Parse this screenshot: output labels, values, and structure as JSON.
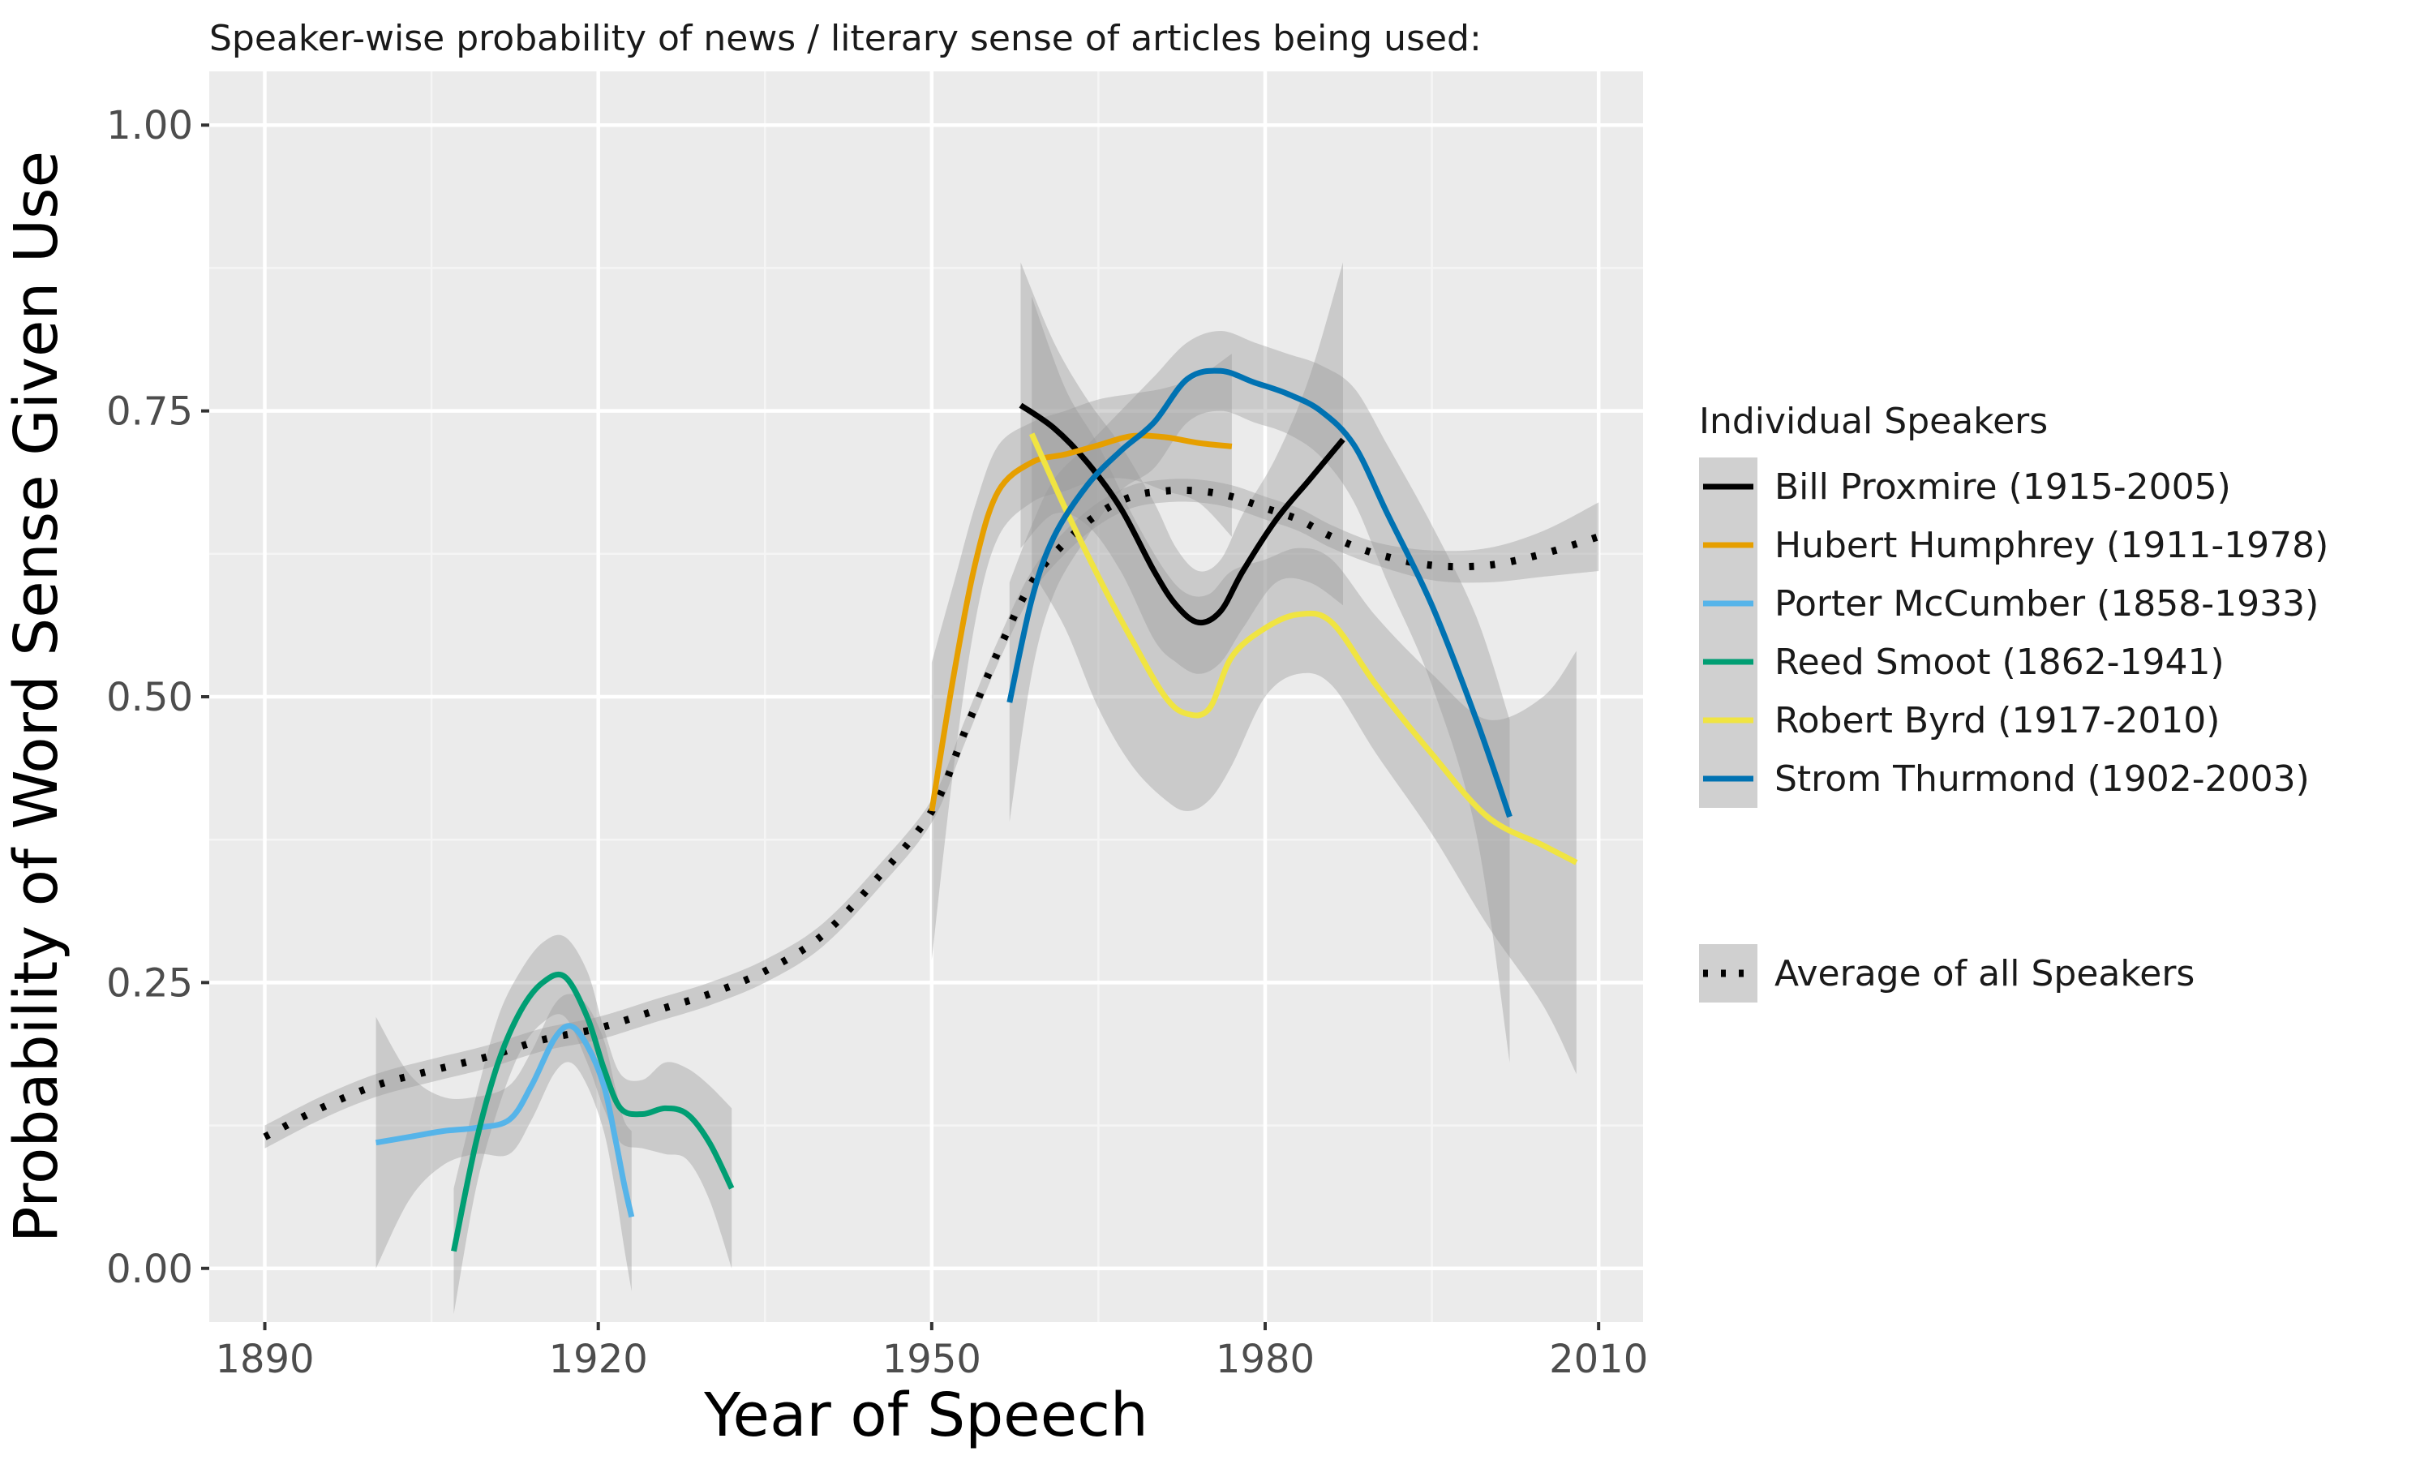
{
  "chart_data": {
    "type": "line",
    "title": "Speaker-wise probability of news / literary sense of articles being used:",
    "xlabel": "Year of Speech",
    "ylabel": "Probability of Word Sense Given Use",
    "xlim": [
      1885,
      2014
    ],
    "ylim": [
      -0.047,
      1.047
    ],
    "x_ticks": [
      1890,
      1920,
      1950,
      1980,
      2010
    ],
    "x_tick_labels": [
      "1890",
      "1920",
      "1950",
      "1980",
      "2010"
    ],
    "y_ticks": [
      0,
      0.25,
      0.5,
      0.75,
      1.0
    ],
    "y_tick_labels": [
      "0.00",
      "0.25",
      "0.50",
      "0.75",
      "1.00"
    ],
    "grid": true,
    "background": "#ebebeb",
    "legend": {
      "title": "Individual Speakers",
      "placement": "right",
      "average_label": "Average of all Speakers"
    },
    "series": [
      {
        "name": "Bill Proxmire (1915-2005)",
        "color": "#000000",
        "points": [
          [
            1958,
            0.755
          ],
          [
            1961,
            0.735
          ],
          [
            1964,
            0.705
          ],
          [
            1967,
            0.665
          ],
          [
            1970,
            0.61
          ],
          [
            1972,
            0.58
          ],
          [
            1974,
            0.565
          ],
          [
            1976,
            0.575
          ],
          [
            1978,
            0.61
          ],
          [
            1981,
            0.655
          ],
          [
            1984,
            0.69
          ],
          [
            1987,
            0.725
          ]
        ],
        "band": [
          [
            1958,
            0.88,
            0.63
          ],
          [
            1961,
            0.81,
            0.66
          ],
          [
            1964,
            0.76,
            0.65
          ],
          [
            1967,
            0.72,
            0.61
          ],
          [
            1970,
            0.67,
            0.55
          ],
          [
            1972,
            0.63,
            0.53
          ],
          [
            1974,
            0.61,
            0.52
          ],
          [
            1976,
            0.62,
            0.53
          ],
          [
            1978,
            0.66,
            0.56
          ],
          [
            1981,
            0.71,
            0.6
          ],
          [
            1984,
            0.78,
            0.6
          ],
          [
            1987,
            0.88,
            0.58
          ]
        ]
      },
      {
        "name": "Hubert Humphrey (1911-1978)",
        "color": "#E69F00",
        "points": [
          [
            1950,
            0.4
          ],
          [
            1952,
            0.52
          ],
          [
            1954,
            0.62
          ],
          [
            1956,
            0.68
          ],
          [
            1959,
            0.705
          ],
          [
            1962,
            0.712
          ],
          [
            1965,
            0.72
          ],
          [
            1968,
            0.728
          ],
          [
            1971,
            0.727
          ],
          [
            1974,
            0.722
          ],
          [
            1977,
            0.719
          ]
        ],
        "band": [
          [
            1950,
            0.53,
            0.27
          ],
          [
            1952,
            0.6,
            0.44
          ],
          [
            1954,
            0.67,
            0.57
          ],
          [
            1956,
            0.72,
            0.64
          ],
          [
            1959,
            0.74,
            0.67
          ],
          [
            1962,
            0.75,
            0.68
          ],
          [
            1965,
            0.76,
            0.69
          ],
          [
            1968,
            0.765,
            0.69
          ],
          [
            1971,
            0.77,
            0.68
          ],
          [
            1974,
            0.78,
            0.67
          ],
          [
            1977,
            0.8,
            0.64
          ]
        ]
      },
      {
        "name": "Porter McCumber (1858-1933)",
        "color": "#56B4E9",
        "points": [
          [
            1900,
            0.11
          ],
          [
            1903,
            0.115
          ],
          [
            1906,
            0.12
          ],
          [
            1909,
            0.123
          ],
          [
            1912,
            0.13
          ],
          [
            1914,
            0.16
          ],
          [
            1916,
            0.2
          ],
          [
            1917.5,
            0.212
          ],
          [
            1919,
            0.195
          ],
          [
            1920.5,
            0.16
          ],
          [
            1921.5,
            0.115
          ],
          [
            1922.3,
            0.075
          ],
          [
            1923,
            0.045
          ]
        ],
        "band": [
          [
            1900,
            0.22,
            0.0
          ],
          [
            1903,
            0.17,
            0.06
          ],
          [
            1906,
            0.15,
            0.09
          ],
          [
            1909,
            0.15,
            0.1
          ],
          [
            1912,
            0.16,
            0.1
          ],
          [
            1914,
            0.19,
            0.13
          ],
          [
            1916,
            0.23,
            0.17
          ],
          [
            1917.5,
            0.24,
            0.18
          ],
          [
            1919,
            0.23,
            0.16
          ],
          [
            1920.5,
            0.2,
            0.12
          ],
          [
            1921.5,
            0.16,
            0.07
          ],
          [
            1922.3,
            0.13,
            0.02
          ],
          [
            1923,
            0.12,
            -0.02
          ]
        ]
      },
      {
        "name": "Reed Smoot (1862-1941)",
        "color": "#009E73",
        "points": [
          [
            1907,
            0.015
          ],
          [
            1909,
            0.11
          ],
          [
            1911,
            0.18
          ],
          [
            1913,
            0.225
          ],
          [
            1915,
            0.25
          ],
          [
            1917,
            0.255
          ],
          [
            1919,
            0.22
          ],
          [
            1920.5,
            0.175
          ],
          [
            1922,
            0.14
          ],
          [
            1924,
            0.135
          ],
          [
            1926,
            0.14
          ],
          [
            1928,
            0.135
          ],
          [
            1930,
            0.11
          ],
          [
            1932,
            0.07
          ]
        ],
        "band": [
          [
            1907,
            0.07,
            -0.04
          ],
          [
            1909,
            0.15,
            0.07
          ],
          [
            1911,
            0.22,
            0.14
          ],
          [
            1913,
            0.26,
            0.19
          ],
          [
            1915,
            0.285,
            0.215
          ],
          [
            1917,
            0.29,
            0.22
          ],
          [
            1919,
            0.26,
            0.18
          ],
          [
            1920.5,
            0.21,
            0.14
          ],
          [
            1922,
            0.17,
            0.11
          ],
          [
            1924,
            0.165,
            0.105
          ],
          [
            1926,
            0.18,
            0.1
          ],
          [
            1928,
            0.175,
            0.095
          ],
          [
            1930,
            0.16,
            0.06
          ],
          [
            1932,
            0.14,
            0.0
          ]
        ]
      },
      {
        "name": "Robert Byrd (1917-2010)",
        "color": "#F0E442",
        "points": [
          [
            1959,
            0.73
          ],
          [
            1962,
            0.665
          ],
          [
            1965,
            0.605
          ],
          [
            1968,
            0.55
          ],
          [
            1971,
            0.5
          ],
          [
            1973,
            0.485
          ],
          [
            1975,
            0.49
          ],
          [
            1977,
            0.535
          ],
          [
            1980,
            0.56
          ],
          [
            1983,
            0.572
          ],
          [
            1986,
            0.565
          ],
          [
            1990,
            0.51
          ],
          [
            1995,
            0.45
          ],
          [
            2000,
            0.395
          ],
          [
            2005,
            0.37
          ],
          [
            2008,
            0.355
          ]
        ],
        "band": [
          [
            1959,
            0.85,
            0.61
          ],
          [
            1962,
            0.77,
            0.56
          ],
          [
            1965,
            0.72,
            0.49
          ],
          [
            1968,
            0.66,
            0.44
          ],
          [
            1971,
            0.61,
            0.41
          ],
          [
            1973,
            0.59,
            0.4
          ],
          [
            1975,
            0.59,
            0.41
          ],
          [
            1977,
            0.61,
            0.44
          ],
          [
            1980,
            0.62,
            0.5
          ],
          [
            1983,
            0.63,
            0.52
          ],
          [
            1986,
            0.62,
            0.51
          ],
          [
            1990,
            0.57,
            0.45
          ],
          [
            1995,
            0.52,
            0.38
          ],
          [
            2000,
            0.48,
            0.3
          ],
          [
            2005,
            0.5,
            0.23
          ],
          [
            2008,
            0.54,
            0.17
          ]
        ]
      },
      {
        "name": "Strom Thurmond (1902-2003)",
        "color": "#0072B2",
        "points": [
          [
            1957,
            0.495
          ],
          [
            1959,
            0.585
          ],
          [
            1961,
            0.64
          ],
          [
            1964,
            0.685
          ],
          [
            1967,
            0.715
          ],
          [
            1970,
            0.74
          ],
          [
            1973,
            0.778
          ],
          [
            1976,
            0.785
          ],
          [
            1979,
            0.775
          ],
          [
            1982,
            0.765
          ],
          [
            1985,
            0.75
          ],
          [
            1988,
            0.72
          ],
          [
            1991,
            0.66
          ],
          [
            1995,
            0.58
          ],
          [
            1999,
            0.48
          ],
          [
            2002,
            0.395
          ]
        ],
        "band": [
          [
            1957,
            0.6,
            0.39
          ],
          [
            1959,
            0.65,
            0.52
          ],
          [
            1961,
            0.69,
            0.59
          ],
          [
            1964,
            0.72,
            0.64
          ],
          [
            1967,
            0.75,
            0.68
          ],
          [
            1970,
            0.78,
            0.7
          ],
          [
            1973,
            0.81,
            0.74
          ],
          [
            1976,
            0.82,
            0.75
          ],
          [
            1979,
            0.81,
            0.74
          ],
          [
            1982,
            0.8,
            0.73
          ],
          [
            1985,
            0.79,
            0.71
          ],
          [
            1988,
            0.77,
            0.67
          ],
          [
            1991,
            0.72,
            0.6
          ],
          [
            1995,
            0.65,
            0.51
          ],
          [
            1999,
            0.57,
            0.38
          ],
          [
            2002,
            0.48,
            0.18
          ]
        ]
      },
      {
        "name": "Average of all Speakers",
        "color": "#000000",
        "dashed": true,
        "points": [
          [
            1890,
            0.115
          ],
          [
            1895,
            0.14
          ],
          [
            1900,
            0.16
          ],
          [
            1905,
            0.173
          ],
          [
            1910,
            0.185
          ],
          [
            1915,
            0.2
          ],
          [
            1920,
            0.21
          ],
          [
            1925,
            0.225
          ],
          [
            1930,
            0.24
          ],
          [
            1935,
            0.26
          ],
          [
            1940,
            0.29
          ],
          [
            1945,
            0.34
          ],
          [
            1950,
            0.4
          ],
          [
            1953,
            0.47
          ],
          [
            1956,
            0.54
          ],
          [
            1959,
            0.6
          ],
          [
            1962,
            0.635
          ],
          [
            1965,
            0.66
          ],
          [
            1968,
            0.675
          ],
          [
            1971,
            0.68
          ],
          [
            1974,
            0.68
          ],
          [
            1977,
            0.675
          ],
          [
            1980,
            0.665
          ],
          [
            1983,
            0.655
          ],
          [
            1986,
            0.64
          ],
          [
            1990,
            0.625
          ],
          [
            1995,
            0.615
          ],
          [
            2000,
            0.615
          ],
          [
            2005,
            0.625
          ],
          [
            2010,
            0.64
          ]
        ],
        "band": [
          [
            1890,
            0.125,
            0.105
          ],
          [
            1895,
            0.15,
            0.13
          ],
          [
            1900,
            0.17,
            0.15
          ],
          [
            1905,
            0.183,
            0.163
          ],
          [
            1910,
            0.195,
            0.175
          ],
          [
            1915,
            0.21,
            0.19
          ],
          [
            1920,
            0.22,
            0.2
          ],
          [
            1925,
            0.235,
            0.215
          ],
          [
            1930,
            0.25,
            0.23
          ],
          [
            1935,
            0.27,
            0.25
          ],
          [
            1940,
            0.3,
            0.28
          ],
          [
            1945,
            0.35,
            0.33
          ],
          [
            1950,
            0.41,
            0.39
          ],
          [
            1953,
            0.48,
            0.46
          ],
          [
            1956,
            0.55,
            0.53
          ],
          [
            1959,
            0.61,
            0.59
          ],
          [
            1962,
            0.645,
            0.625
          ],
          [
            1965,
            0.67,
            0.65
          ],
          [
            1968,
            0.685,
            0.665
          ],
          [
            1971,
            0.69,
            0.67
          ],
          [
            1974,
            0.69,
            0.67
          ],
          [
            1977,
            0.685,
            0.665
          ],
          [
            1980,
            0.675,
            0.655
          ],
          [
            1983,
            0.665,
            0.645
          ],
          [
            1986,
            0.65,
            0.63
          ],
          [
            1990,
            0.635,
            0.615
          ],
          [
            1995,
            0.628,
            0.602
          ],
          [
            2000,
            0.63,
            0.6
          ],
          [
            2005,
            0.645,
            0.605
          ],
          [
            2010,
            0.67,
            0.61
          ]
        ]
      }
    ]
  }
}
